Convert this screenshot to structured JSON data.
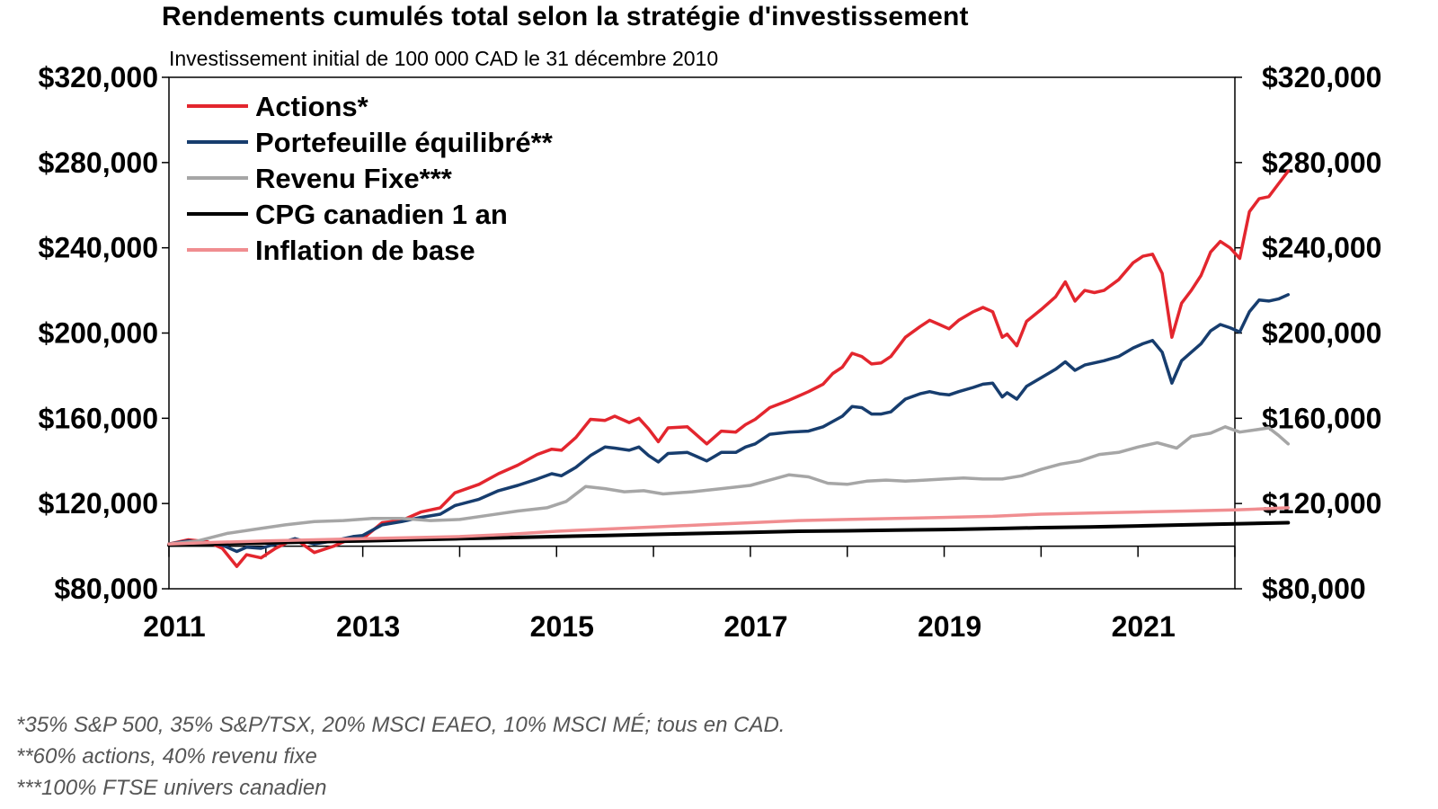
{
  "chart_data": {
    "type": "line",
    "title": "Rendements cumulés total selon la stratégie d'investissement",
    "subtitle": "Investissement  initial de 100 000 CAD le 31 décembre 2010",
    "xlabel": "",
    "ylabel": "",
    "xlim": [
      2011.0,
      2022.0
    ],
    "ylim": [
      80000,
      320000
    ],
    "y_ticks": [
      80000,
      120000,
      160000,
      200000,
      240000,
      280000,
      320000
    ],
    "y_tick_labels": [
      "$80,000",
      "$120,000",
      "$160,000",
      "$200,000",
      "$240,000",
      "$280,000",
      "$320,000"
    ],
    "x_ticks": [
      2011,
      2013,
      2015,
      2017,
      2019,
      2021
    ],
    "x_tick_labels": [
      "2011",
      "2013",
      "2015",
      "2017",
      "2019",
      "2021"
    ],
    "baseline": 100000,
    "legend_position": "top-left",
    "series": [
      {
        "name": "Actions*",
        "color": "#e3262e",
        "points": [
          [
            2011.0,
            101000
          ],
          [
            2011.2,
            103000
          ],
          [
            2011.4,
            102000
          ],
          [
            2011.55,
            99000
          ],
          [
            2011.7,
            90500
          ],
          [
            2011.8,
            96000
          ],
          [
            2011.95,
            94500
          ],
          [
            2012.1,
            99000
          ],
          [
            2012.3,
            103500
          ],
          [
            2012.5,
            97000
          ],
          [
            2012.7,
            100000
          ],
          [
            2012.9,
            104000
          ],
          [
            2013.0,
            103500
          ],
          [
            2013.2,
            111000
          ],
          [
            2013.4,
            112000
          ],
          [
            2013.6,
            116000
          ],
          [
            2013.8,
            118000
          ],
          [
            2013.95,
            125000
          ],
          [
            2014.2,
            129000
          ],
          [
            2014.4,
            134000
          ],
          [
            2014.6,
            138000
          ],
          [
            2014.8,
            143000
          ],
          [
            2014.95,
            145500
          ],
          [
            2015.05,
            145000
          ],
          [
            2015.2,
            151000
          ],
          [
            2015.35,
            159500
          ],
          [
            2015.5,
            159000
          ],
          [
            2015.6,
            161000
          ],
          [
            2015.75,
            158000
          ],
          [
            2015.85,
            160000
          ],
          [
            2015.95,
            155000
          ],
          [
            2016.05,
            149000
          ],
          [
            2016.15,
            155500
          ],
          [
            2016.35,
            156000
          ],
          [
            2016.45,
            152000
          ],
          [
            2016.55,
            148000
          ],
          [
            2016.7,
            154000
          ],
          [
            2016.85,
            153500
          ],
          [
            2016.95,
            157000
          ],
          [
            2017.05,
            159500
          ],
          [
            2017.2,
            165000
          ],
          [
            2017.4,
            168500
          ],
          [
            2017.6,
            172500
          ],
          [
            2017.75,
            176000
          ],
          [
            2017.85,
            181000
          ],
          [
            2017.95,
            184000
          ],
          [
            2018.05,
            190500
          ],
          [
            2018.15,
            189000
          ],
          [
            2018.25,
            185500
          ],
          [
            2018.35,
            186000
          ],
          [
            2018.45,
            189000
          ],
          [
            2018.6,
            198000
          ],
          [
            2018.75,
            203000
          ],
          [
            2018.85,
            206000
          ],
          [
            2018.95,
            204000
          ],
          [
            2019.05,
            202000
          ],
          [
            2019.15,
            206000
          ],
          [
            2019.3,
            210000
          ],
          [
            2019.4,
            212000
          ],
          [
            2019.5,
            210000
          ],
          [
            2019.6,
            198000
          ],
          [
            2019.65,
            199500
          ],
          [
            2019.75,
            194000
          ],
          [
            2019.85,
            205500
          ],
          [
            2020.0,
            211000
          ],
          [
            2020.15,
            217000
          ],
          [
            2020.25,
            224000
          ],
          [
            2020.35,
            215000
          ],
          [
            2020.45,
            220000
          ],
          [
            2020.55,
            219000
          ],
          [
            2020.65,
            220000
          ],
          [
            2020.8,
            225000
          ],
          [
            2020.95,
            233000
          ],
          [
            2021.05,
            236000
          ],
          [
            2021.15,
            237000
          ],
          [
            2021.25,
            228000
          ],
          [
            2021.35,
            198000
          ],
          [
            2021.45,
            214000
          ],
          [
            2021.55,
            220000
          ],
          [
            2021.65,
            227000
          ],
          [
            2021.75,
            238000
          ],
          [
            2021.85,
            243000
          ],
          [
            2021.95,
            240000
          ],
          [
            2022.05,
            235000
          ],
          [
            2022.15,
            257000
          ],
          [
            2022.25,
            263000
          ],
          [
            2022.35,
            264000
          ],
          [
            2022.45,
            270000
          ],
          [
            2022.55,
            276000
          ]
        ]
      },
      {
        "name": "Portefeuille équilibré**",
        "color": "#173d6e",
        "points": [
          [
            2011.0,
            101000
          ],
          [
            2011.2,
            102500
          ],
          [
            2011.4,
            101500
          ],
          [
            2011.55,
            100500
          ],
          [
            2011.7,
            97500
          ],
          [
            2011.8,
            99500
          ],
          [
            2011.95,
            99000
          ],
          [
            2012.1,
            101000
          ],
          [
            2012.3,
            103500
          ],
          [
            2012.5,
            101000
          ],
          [
            2012.7,
            102500
          ],
          [
            2012.9,
            104500
          ],
          [
            2013.0,
            105000
          ],
          [
            2013.2,
            110000
          ],
          [
            2013.4,
            111500
          ],
          [
            2013.6,
            113500
          ],
          [
            2013.8,
            115000
          ],
          [
            2013.95,
            119000
          ],
          [
            2014.2,
            122000
          ],
          [
            2014.4,
            126000
          ],
          [
            2014.6,
            128500
          ],
          [
            2014.8,
            131500
          ],
          [
            2014.95,
            134000
          ],
          [
            2015.05,
            133000
          ],
          [
            2015.2,
            137000
          ],
          [
            2015.35,
            142500
          ],
          [
            2015.5,
            146500
          ],
          [
            2015.6,
            146000
          ],
          [
            2015.75,
            145000
          ],
          [
            2015.85,
            146500
          ],
          [
            2015.95,
            142500
          ],
          [
            2016.05,
            139500
          ],
          [
            2016.15,
            143500
          ],
          [
            2016.35,
            144000
          ],
          [
            2016.45,
            142000
          ],
          [
            2016.55,
            140000
          ],
          [
            2016.7,
            144000
          ],
          [
            2016.85,
            144000
          ],
          [
            2016.95,
            146500
          ],
          [
            2017.05,
            148000
          ],
          [
            2017.2,
            152500
          ],
          [
            2017.4,
            153500
          ],
          [
            2017.6,
            154000
          ],
          [
            2017.75,
            156000
          ],
          [
            2017.85,
            158500
          ],
          [
            2017.95,
            161000
          ],
          [
            2018.05,
            165500
          ],
          [
            2018.15,
            165000
          ],
          [
            2018.25,
            162000
          ],
          [
            2018.35,
            162000
          ],
          [
            2018.45,
            163000
          ],
          [
            2018.6,
            169000
          ],
          [
            2018.75,
            171500
          ],
          [
            2018.85,
            172500
          ],
          [
            2018.95,
            171500
          ],
          [
            2019.05,
            171000
          ],
          [
            2019.15,
            172500
          ],
          [
            2019.3,
            174500
          ],
          [
            2019.4,
            176000
          ],
          [
            2019.5,
            176500
          ],
          [
            2019.6,
            170000
          ],
          [
            2019.65,
            172000
          ],
          [
            2019.75,
            169000
          ],
          [
            2019.85,
            175000
          ],
          [
            2020.0,
            179000
          ],
          [
            2020.15,
            183000
          ],
          [
            2020.25,
            186500
          ],
          [
            2020.35,
            182500
          ],
          [
            2020.45,
            185000
          ],
          [
            2020.55,
            186000
          ],
          [
            2020.65,
            187000
          ],
          [
            2020.8,
            189000
          ],
          [
            2020.95,
            193000
          ],
          [
            2021.05,
            195000
          ],
          [
            2021.15,
            196500
          ],
          [
            2021.25,
            191000
          ],
          [
            2021.35,
            176500
          ],
          [
            2021.45,
            187000
          ],
          [
            2021.55,
            191000
          ],
          [
            2021.65,
            195000
          ],
          [
            2021.75,
            201000
          ],
          [
            2021.85,
            204000
          ],
          [
            2021.95,
            202500
          ],
          [
            2022.05,
            200500
          ],
          [
            2022.15,
            210000
          ],
          [
            2022.25,
            215500
          ],
          [
            2022.35,
            215000
          ],
          [
            2022.45,
            216000
          ],
          [
            2022.55,
            218000
          ]
        ]
      },
      {
        "name": "Revenu Fixe***",
        "color": "#a6a6a6",
        "points": [
          [
            2011.0,
            101000
          ],
          [
            2011.3,
            102500
          ],
          [
            2011.6,
            106000
          ],
          [
            2011.9,
            108000
          ],
          [
            2012.2,
            110000
          ],
          [
            2012.5,
            111500
          ],
          [
            2012.8,
            112000
          ],
          [
            2013.1,
            113000
          ],
          [
            2013.4,
            113000
          ],
          [
            2013.7,
            112000
          ],
          [
            2014.0,
            112500
          ],
          [
            2014.3,
            114500
          ],
          [
            2014.6,
            116500
          ],
          [
            2014.9,
            118000
          ],
          [
            2015.1,
            121000
          ],
          [
            2015.3,
            128000
          ],
          [
            2015.5,
            127000
          ],
          [
            2015.7,
            125500
          ],
          [
            2015.9,
            126000
          ],
          [
            2016.1,
            124500
          ],
          [
            2016.4,
            125500
          ],
          [
            2016.7,
            127000
          ],
          [
            2017.0,
            128500
          ],
          [
            2017.2,
            131000
          ],
          [
            2017.4,
            133500
          ],
          [
            2017.6,
            132500
          ],
          [
            2017.8,
            129500
          ],
          [
            2018.0,
            129000
          ],
          [
            2018.2,
            130500
          ],
          [
            2018.4,
            131000
          ],
          [
            2018.6,
            130500
          ],
          [
            2018.8,
            131000
          ],
          [
            2019.0,
            131500
          ],
          [
            2019.2,
            132000
          ],
          [
            2019.4,
            131500
          ],
          [
            2019.6,
            131500
          ],
          [
            2019.8,
            133000
          ],
          [
            2020.0,
            136000
          ],
          [
            2020.2,
            138500
          ],
          [
            2020.4,
            140000
          ],
          [
            2020.6,
            143000
          ],
          [
            2020.8,
            144000
          ],
          [
            2021.0,
            146500
          ],
          [
            2021.2,
            148500
          ],
          [
            2021.4,
            146000
          ],
          [
            2021.55,
            151500
          ],
          [
            2021.75,
            153000
          ],
          [
            2021.9,
            156000
          ],
          [
            2022.05,
            153500
          ],
          [
            2022.2,
            154500
          ],
          [
            2022.35,
            155500
          ],
          [
            2022.45,
            152000
          ],
          [
            2022.55,
            148000
          ]
        ]
      },
      {
        "name": "CPG canadien 1 an",
        "color": "#000000",
        "points": [
          [
            2011.0,
            100500
          ],
          [
            2011.5,
            101000
          ],
          [
            2012.0,
            101500
          ],
          [
            2012.5,
            102000
          ],
          [
            2013.0,
            102500
          ],
          [
            2013.5,
            103000
          ],
          [
            2014.0,
            103500
          ],
          [
            2014.5,
            104000
          ],
          [
            2015.0,
            104500
          ],
          [
            2015.5,
            105000
          ],
          [
            2016.0,
            105500
          ],
          [
            2016.5,
            106000
          ],
          [
            2017.0,
            106500
          ],
          [
            2017.5,
            107000
          ],
          [
            2018.0,
            107200
          ],
          [
            2018.5,
            107500
          ],
          [
            2019.0,
            107800
          ],
          [
            2019.5,
            108200
          ],
          [
            2020.0,
            108700
          ],
          [
            2020.5,
            109000
          ],
          [
            2021.0,
            109500
          ],
          [
            2021.5,
            110000
          ],
          [
            2022.0,
            110500
          ],
          [
            2022.55,
            111000
          ]
        ]
      },
      {
        "name": "Inflation de base",
        "color": "#f08d90",
        "points": [
          [
            2011.0,
            101000
          ],
          [
            2011.5,
            101800
          ],
          [
            2012.0,
            102500
          ],
          [
            2012.5,
            103000
          ],
          [
            2013.0,
            103500
          ],
          [
            2013.5,
            104000
          ],
          [
            2014.0,
            104500
          ],
          [
            2014.5,
            105500
          ],
          [
            2015.0,
            107000
          ],
          [
            2015.5,
            108000
          ],
          [
            2016.0,
            109000
          ],
          [
            2016.5,
            110000
          ],
          [
            2017.0,
            111000
          ],
          [
            2017.5,
            112000
          ],
          [
            2018.0,
            112500
          ],
          [
            2018.5,
            113000
          ],
          [
            2019.0,
            113500
          ],
          [
            2019.5,
            114000
          ],
          [
            2020.0,
            115000
          ],
          [
            2020.5,
            115500
          ],
          [
            2021.0,
            116000
          ],
          [
            2021.5,
            116500
          ],
          [
            2022.0,
            117000
          ],
          [
            2022.55,
            118000
          ]
        ]
      }
    ]
  },
  "footnotes": [
    "*35% S&P 500, 35% S&P/TSX, 20% MSCI EAEO, 10% MSCI MÉ; tous en CAD.",
    "**60% actions, 40% revenu fixe",
    "***100% FTSE univers canadien"
  ]
}
